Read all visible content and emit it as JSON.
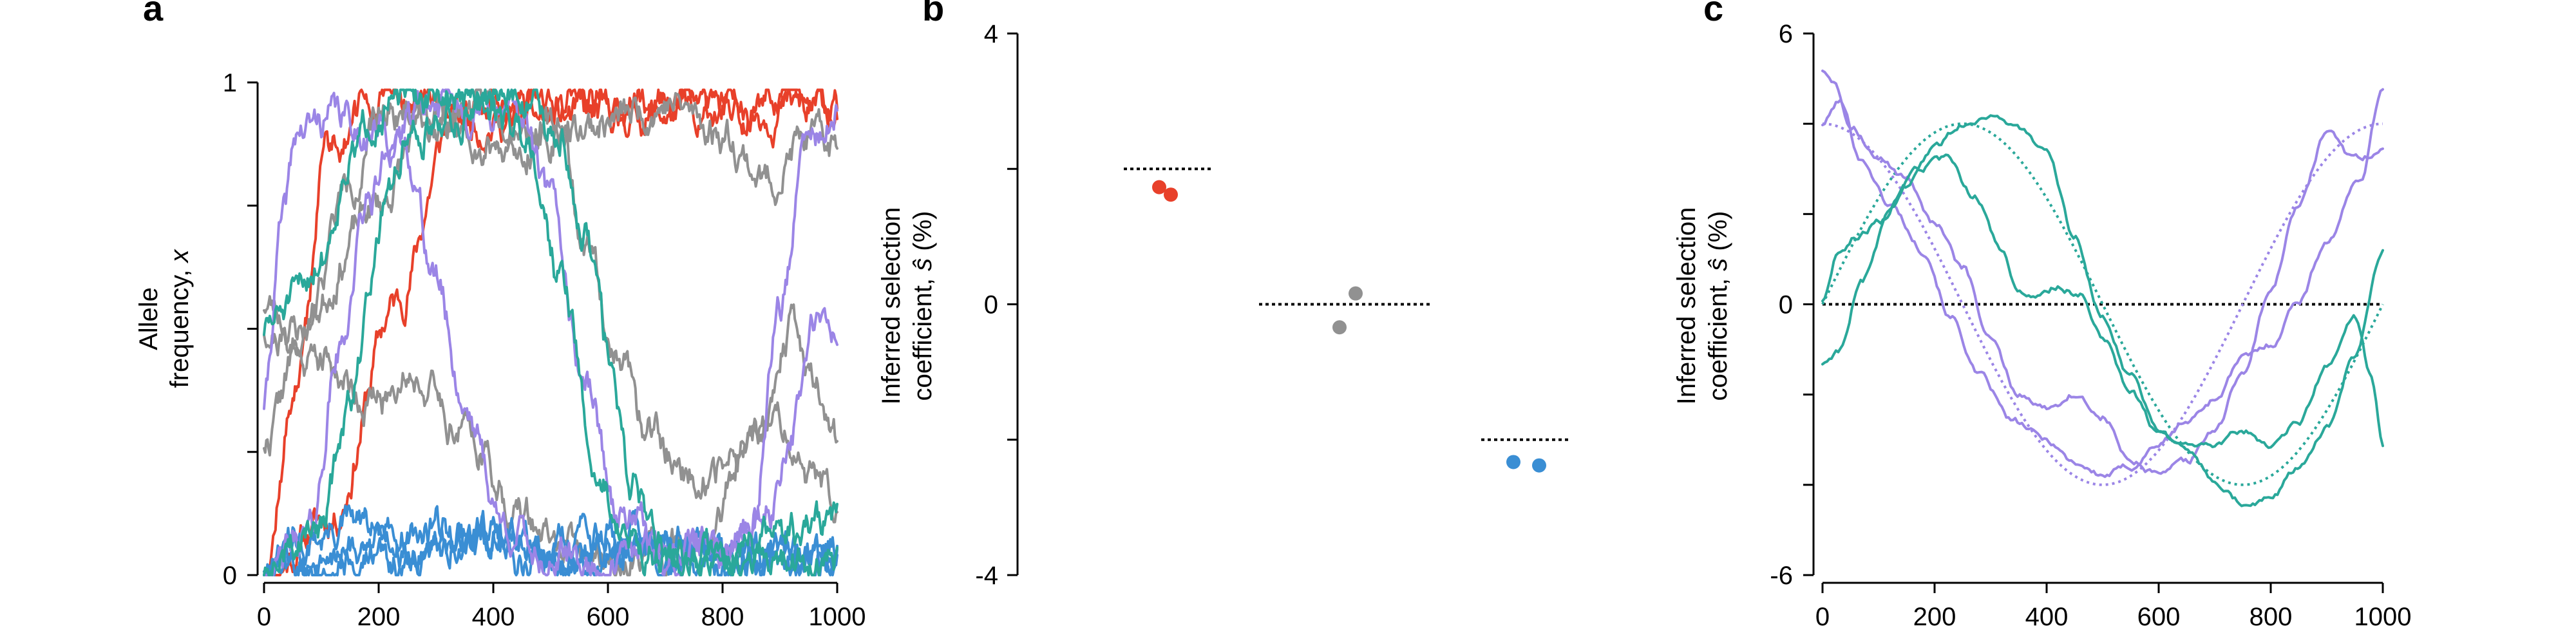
{
  "colors": {
    "beneficial": "#e8402a",
    "neutral": "#919191",
    "deleterious": "#3a8ed4",
    "time_varying_a": "#9b85e6",
    "time_varying_b": "#2aa89a"
  },
  "chart_data": [
    {
      "panel": "a",
      "type": "line",
      "ylabel_line1": "Allele",
      "ylabel_line2": "frequency, ",
      "ylabel_var": "x",
      "xlim": [
        0,
        1000
      ],
      "ylim": [
        0,
        1
      ],
      "x_ticks": [
        "0",
        "200",
        "400",
        "600",
        "800",
        "1000"
      ],
      "y_ticks": [
        "0",
        "1"
      ],
      "series": [
        {
          "color": "beneficial",
          "seed": 11,
          "points": [
            [
              0,
              0
            ],
            [
              120,
              0.12
            ],
            [
              230,
              0.55
            ],
            [
              330,
              0.92
            ],
            [
              1000,
              0.95
            ]
          ]
        },
        {
          "color": "beneficial",
          "seed": 12,
          "points": [
            [
              0,
              0.02
            ],
            [
              60,
              0.4
            ],
            [
              110,
              0.88
            ],
            [
              200,
              0.96
            ],
            [
              1000,
              0.96
            ]
          ]
        },
        {
          "color": "neutral",
          "seed": 21,
          "points": [
            [
              0,
              0.5
            ],
            [
              80,
              0.45
            ],
            [
              200,
              0.35
            ],
            [
              250,
              0.42
            ],
            [
              350,
              0.3
            ],
            [
              450,
              0.12
            ],
            [
              520,
              0.05
            ],
            [
              640,
              0.02
            ],
            [
              760,
              0.05
            ],
            [
              860,
              0.3
            ],
            [
              920,
              0.5
            ],
            [
              960,
              0.4
            ],
            [
              1000,
              0.28
            ]
          ]
        },
        {
          "color": "neutral",
          "seed": 22,
          "points": [
            [
              0,
              0.27
            ],
            [
              60,
              0.45
            ],
            [
              150,
              0.8
            ],
            [
              220,
              0.95
            ],
            [
              330,
              0.92
            ],
            [
              400,
              0.88
            ],
            [
              520,
              0.9
            ],
            [
              560,
              0.65
            ],
            [
              620,
              0.45
            ],
            [
              660,
              0.3
            ],
            [
              760,
              0.2
            ],
            [
              900,
              0.3
            ],
            [
              950,
              0.2
            ],
            [
              1000,
              0.15
            ]
          ]
        },
        {
          "color": "neutral",
          "seed": 23,
          "points": [
            [
              0,
              0.55
            ],
            [
              60,
              0.5
            ],
            [
              200,
              0.75
            ],
            [
              280,
              0.92
            ],
            [
              400,
              0.96
            ],
            [
              500,
              0.9
            ],
            [
              600,
              0.92
            ],
            [
              700,
              0.96
            ],
            [
              800,
              0.9
            ],
            [
              880,
              0.8
            ],
            [
              940,
              0.88
            ],
            [
              1000,
              0.87
            ]
          ]
        },
        {
          "color": "deleterious",
          "seed": 31,
          "points": [
            [
              0,
              0.01
            ],
            [
              60,
              0.06
            ],
            [
              150,
              0.1
            ],
            [
              250,
              0.06
            ],
            [
              350,
              0.08
            ],
            [
              450,
              0.03
            ],
            [
              550,
              0.05
            ],
            [
              650,
              0.03
            ],
            [
              750,
              0.04
            ],
            [
              850,
              0.02
            ],
            [
              1000,
              0.04
            ]
          ]
        },
        {
          "color": "deleterious",
          "seed": 32,
          "points": [
            [
              0,
              0
            ],
            [
              100,
              0.02
            ],
            [
              200,
              0.08
            ],
            [
              300,
              0.1
            ],
            [
              400,
              0.07
            ],
            [
              500,
              0.06
            ],
            [
              600,
              0.08
            ],
            [
              700,
              0.03
            ],
            [
              800,
              0.02
            ],
            [
              900,
              0.03
            ],
            [
              1000,
              0.02
            ]
          ]
        },
        {
          "color": "deleterious",
          "seed": 33,
          "points": [
            [
              0,
              0.02
            ],
            [
              120,
              0.04
            ],
            [
              250,
              0.03
            ],
            [
              380,
              0.08
            ],
            [
              480,
              0.05
            ],
            [
              600,
              0.04
            ],
            [
              720,
              0.06
            ],
            [
              850,
              0.02
            ],
            [
              1000,
              0.05
            ]
          ]
        },
        {
          "color": "time_varying_a",
          "seed": 41,
          "points": [
            [
              0,
              0.35
            ],
            [
              30,
              0.7
            ],
            [
              60,
              0.9
            ],
            [
              120,
              0.93
            ],
            [
              200,
              0.9
            ],
            [
              250,
              0.86
            ],
            [
              300,
              0.6
            ],
            [
              350,
              0.35
            ],
            [
              420,
              0.1
            ],
            [
              500,
              0.03
            ],
            [
              600,
              0.02
            ],
            [
              700,
              0.05
            ],
            [
              800,
              0.06
            ],
            [
              850,
              0.1
            ],
            [
              900,
              0.55
            ],
            [
              950,
              0.88
            ],
            [
              1000,
              0.92
            ]
          ]
        },
        {
          "color": "time_varying_a",
          "seed": 42,
          "points": [
            [
              0,
              0
            ],
            [
              80,
              0.08
            ],
            [
              130,
              0.45
            ],
            [
              180,
              0.75
            ],
            [
              230,
              0.9
            ],
            [
              300,
              0.95
            ],
            [
              450,
              0.93
            ],
            [
              500,
              0.75
            ],
            [
              560,
              0.4
            ],
            [
              620,
              0.12
            ],
            [
              700,
              0.05
            ],
            [
              800,
              0.05
            ],
            [
              880,
              0.12
            ],
            [
              920,
              0.3
            ],
            [
              960,
              0.5
            ],
            [
              1000,
              0.48
            ]
          ]
        },
        {
          "color": "time_varying_b",
          "seed": 51,
          "points": [
            [
              0,
              0.5
            ],
            [
              50,
              0.55
            ],
            [
              100,
              0.65
            ],
            [
              150,
              0.85
            ],
            [
              200,
              0.95
            ],
            [
              300,
              0.97
            ],
            [
              400,
              0.95
            ],
            [
              460,
              0.9
            ],
            [
              520,
              0.6
            ],
            [
              580,
              0.2
            ],
            [
              640,
              0.06
            ],
            [
              720,
              0.04
            ],
            [
              800,
              0.05
            ],
            [
              900,
              0.08
            ],
            [
              1000,
              0.12
            ]
          ]
        },
        {
          "color": "time_varying_b",
          "seed": 52,
          "points": [
            [
              0,
              0
            ],
            [
              100,
              0.1
            ],
            [
              150,
              0.35
            ],
            [
              210,
              0.75
            ],
            [
              250,
              0.9
            ],
            [
              350,
              0.96
            ],
            [
              450,
              0.97
            ],
            [
              520,
              0.9
            ],
            [
              560,
              0.7
            ],
            [
              600,
              0.45
            ],
            [
              640,
              0.2
            ],
            [
              700,
              0.05
            ],
            [
              800,
              0.02
            ],
            [
              900,
              0.02
            ],
            [
              1000,
              0.03
            ]
          ]
        }
      ]
    },
    {
      "panel": "b",
      "type": "scatter",
      "ylabel_line1": "Inferred selection",
      "ylabel_line2": "coefficient, ",
      "ylabel_var": "ŝ",
      "ylabel_unit": " (%)",
      "ylim": [
        -4,
        4
      ],
      "y_ticks": [
        "-4",
        "0",
        "4"
      ],
      "groups": [
        {
          "color": "beneficial",
          "true_value": 2.0,
          "points": [
            1.73,
            1.62
          ]
        },
        {
          "color": "neutral",
          "true_value": 0.0,
          "points": [
            -0.34,
            0.16
          ]
        },
        {
          "color": "deleterious",
          "true_value": -2.0,
          "points": [
            -2.33,
            -2.38
          ]
        }
      ]
    },
    {
      "panel": "c",
      "type": "line",
      "ylabel_line1": "Inferred selection",
      "ylabel_line2": "coefficient, ",
      "ylabel_var": "ŝ",
      "ylabel_unit": " (%)",
      "xlim": [
        0,
        1000
      ],
      "ylim": [
        -6,
        6
      ],
      "x_ticks": [
        "0",
        "200",
        "400",
        "600",
        "800",
        "1000"
      ],
      "y_ticks": [
        "-6",
        "0",
        "6"
      ],
      "true_functions": [
        {
          "color": "time_varying_a",
          "shape": "cos",
          "amplitude": 4,
          "period": 1000,
          "phase": 0
        },
        {
          "color": "time_varying_b",
          "shape": "sin",
          "amplitude": 4,
          "period": 1000,
          "phase": 0
        }
      ],
      "series": [
        {
          "color": "time_varying_a",
          "points": [
            [
              0,
              5.2
            ],
            [
              20,
              5.0
            ],
            [
              50,
              4.0
            ],
            [
              100,
              3.2
            ],
            [
              150,
              2.8
            ],
            [
              200,
              1.8
            ],
            [
              250,
              0.8
            ],
            [
              300,
              -0.8
            ],
            [
              350,
              -2.0
            ],
            [
              400,
              -2.3
            ],
            [
              450,
              -2.0
            ],
            [
              500,
              -2.5
            ],
            [
              550,
              -3.5
            ],
            [
              600,
              -3.8
            ],
            [
              650,
              -3.5
            ],
            [
              700,
              -2.8
            ],
            [
              750,
              -1.5
            ],
            [
              800,
              0.3
            ],
            [
              850,
              2.2
            ],
            [
              900,
              3.8
            ],
            [
              950,
              3.2
            ],
            [
              1000,
              3.4
            ]
          ]
        },
        {
          "color": "time_varying_a",
          "points": [
            [
              0,
              4.0
            ],
            [
              30,
              4.5
            ],
            [
              70,
              3.2
            ],
            [
              120,
              2.2
            ],
            [
              180,
              1.2
            ],
            [
              230,
              -0.3
            ],
            [
              280,
              -1.6
            ],
            [
              340,
              -2.6
            ],
            [
              400,
              -3.0
            ],
            [
              450,
              -3.5
            ],
            [
              500,
              -3.8
            ],
            [
              550,
              -3.6
            ],
            [
              600,
              -3.1
            ],
            [
              650,
              -2.6
            ],
            [
              700,
              -2.1
            ],
            [
              750,
              -1.2
            ],
            [
              800,
              -0.9
            ],
            [
              850,
              0.1
            ],
            [
              900,
              1.4
            ],
            [
              960,
              2.8
            ],
            [
              1000,
              4.8
            ]
          ]
        },
        {
          "color": "time_varying_b",
          "points": [
            [
              0,
              0.1
            ],
            [
              30,
              1.2
            ],
            [
              60,
              1.5
            ],
            [
              100,
              1.8
            ],
            [
              150,
              2.6
            ],
            [
              200,
              3.5
            ],
            [
              250,
              4.0
            ],
            [
              300,
              4.2
            ],
            [
              350,
              3.9
            ],
            [
              400,
              3.3
            ],
            [
              450,
              1.5
            ],
            [
              500,
              -0.3
            ],
            [
              550,
              -1.6
            ],
            [
              600,
              -2.7
            ],
            [
              650,
              -3.2
            ],
            [
              700,
              -3.9
            ],
            [
              750,
              -4.4
            ],
            [
              800,
              -4.3
            ],
            [
              850,
              -3.6
            ],
            [
              900,
              -2.7
            ],
            [
              950,
              -1.2
            ],
            [
              1000,
              1.2
            ]
          ]
        },
        {
          "color": "time_varying_b",
          "points": [
            [
              0,
              -1.3
            ],
            [
              30,
              -1.0
            ],
            [
              70,
              0.5
            ],
            [
              120,
              2.0
            ],
            [
              170,
              3.0
            ],
            [
              220,
              3.2
            ],
            [
              270,
              2.4
            ],
            [
              320,
              1.2
            ],
            [
              350,
              0.3
            ],
            [
              380,
              0.1
            ],
            [
              420,
              0.4
            ],
            [
              460,
              0.2
            ],
            [
              500,
              -0.7
            ],
            [
              550,
              -1.9
            ],
            [
              600,
              -2.9
            ],
            [
              650,
              -3.2
            ],
            [
              700,
              -3.1
            ],
            [
              750,
              -2.8
            ],
            [
              800,
              -3.1
            ],
            [
              850,
              -2.6
            ],
            [
              900,
              -1.4
            ],
            [
              950,
              -0.3
            ],
            [
              980,
              -1.6
            ],
            [
              1000,
              -3.2
            ]
          ]
        }
      ]
    }
  ],
  "labels": {
    "panel_a": "a",
    "panel_b": "b",
    "panel_c": "c"
  }
}
